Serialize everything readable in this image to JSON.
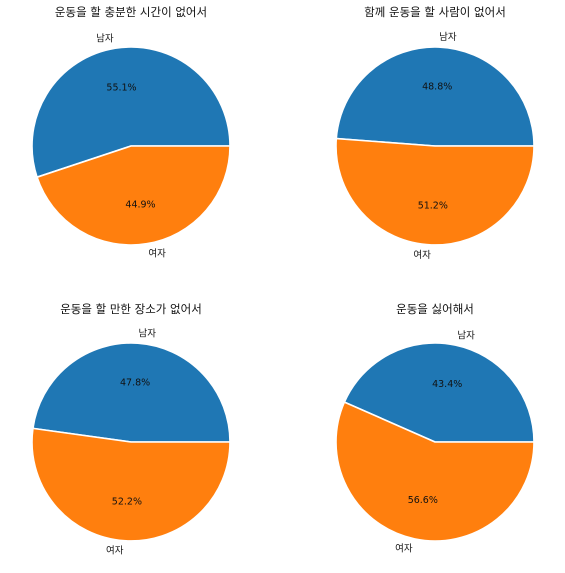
{
  "chart_data": [
    {
      "type": "pie",
      "title": "운동을 할 충분한 시간이 없어서",
      "categories": [
        "남자",
        "여자"
      ],
      "values": [
        55.1,
        44.9
      ],
      "labels": [
        "55.1%",
        "44.9%"
      ],
      "colors": [
        "#1f77b4",
        "#ff7f0e"
      ],
      "start_angle_deg": 0,
      "direction": "counterclockwise"
    },
    {
      "type": "pie",
      "title": "함께 운동을 할 사람이 없어서",
      "categories": [
        "남자",
        "여자"
      ],
      "values": [
        48.8,
        51.2
      ],
      "labels": [
        "48.8%",
        "51.2%"
      ],
      "colors": [
        "#1f77b4",
        "#ff7f0e"
      ],
      "start_angle_deg": 0,
      "direction": "counterclockwise"
    },
    {
      "type": "pie",
      "title": "운동을 할 만한 장소가 없어서",
      "categories": [
        "남자",
        "여자"
      ],
      "values": [
        47.8,
        52.2
      ],
      "labels": [
        "47.8%",
        "52.2%"
      ],
      "colors": [
        "#1f77b4",
        "#ff7f0e"
      ],
      "start_angle_deg": 0,
      "direction": "counterclockwise"
    },
    {
      "type": "pie",
      "title": "운동을 싫어해서",
      "categories": [
        "남자",
        "여자"
      ],
      "values": [
        43.4,
        56.6
      ],
      "labels": [
        "43.4%",
        "56.6%"
      ],
      "colors": [
        "#1f77b4",
        "#ff7f0e"
      ],
      "start_angle_deg": 0,
      "direction": "counterclockwise"
    }
  ]
}
